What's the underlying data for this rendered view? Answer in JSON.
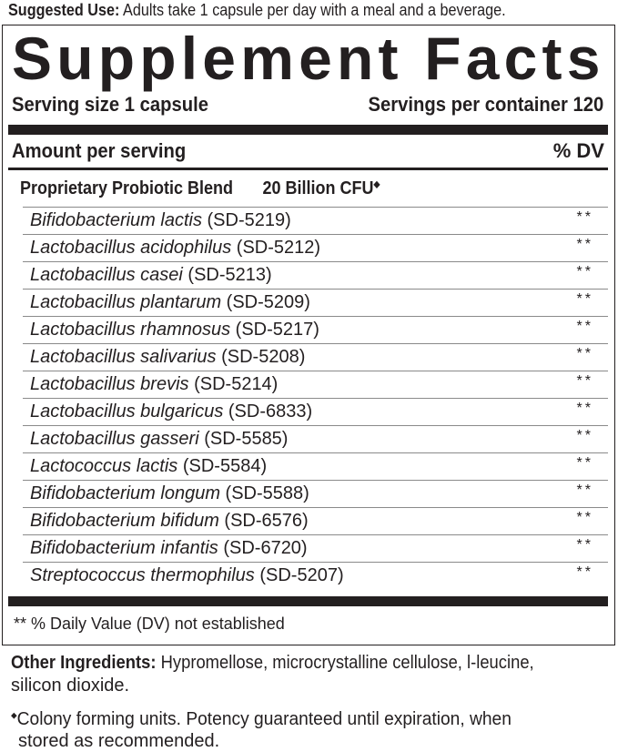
{
  "suggested_use": {
    "label": "Suggested Use:",
    "text": " Adults take 1 capsule per day with a meal and a beverage."
  },
  "panel": {
    "title": "Supplement Facts",
    "serving_size": "Serving size 1 capsule",
    "servings_per_container": "Servings per container 120",
    "amount_per_serving": "Amount per serving",
    "dv_header": "% DV",
    "blend": {
      "name": "Proprietary Probiotic Blend",
      "amount": "20 Billion CFU",
      "mark": "◆"
    },
    "ingredients": [
      {
        "species": "Bifidobacterium lactis",
        "strain": " (SD-5219)",
        "dv": "**"
      },
      {
        "species": "Lactobacillus acidophilus",
        "strain": " (SD-5212)",
        "dv": "**"
      },
      {
        "species": "Lactobacillus casei",
        "strain": " (SD-5213)",
        "dv": "**"
      },
      {
        "species": "Lactobacillus plantarum",
        "strain": " (SD-5209)",
        "dv": "**"
      },
      {
        "species": "Lactobacillus rhamnosus",
        "strain": " (SD-5217)",
        "dv": "**"
      },
      {
        "species": "Lactobacillus salivarius",
        "strain": " (SD-5208)",
        "dv": "**"
      },
      {
        "species": "Lactobacillus brevis",
        "strain": " (SD-5214)",
        "dv": "**"
      },
      {
        "species": "Lactobacillus bulgaricus",
        "strain": " (SD-6833)",
        "dv": "**"
      },
      {
        "species": "Lactobacillus gasseri",
        "strain": " (SD-5585)",
        "dv": "**"
      },
      {
        "species": "Lactococcus lactis",
        "strain": " (SD-5584)",
        "dv": "**"
      },
      {
        "species": "Bifidobacterium longum",
        "strain": " (SD-5588)",
        "dv": "**"
      },
      {
        "species": "Bifidobacterium bifidum",
        "strain": " (SD-6576)",
        "dv": "**"
      },
      {
        "species": "Bifidobacterium infantis",
        "strain": " (SD-6720)",
        "dv": "**"
      },
      {
        "species": "Streptococcus thermophilus",
        "strain": " (SD-5207)",
        "dv": "**"
      }
    ],
    "footnote": "** % Daily Value (DV) not established"
  },
  "other_ingredients": {
    "label": "Other Ingredients:",
    "line1": " Hypromellose, microcrystalline cellulose, l-leucine,",
    "line2": "silicon dioxide."
  },
  "cfu_note": {
    "mark": "◆",
    "line1": "Colony forming units. Potency guaranteed until expiration, when",
    "line2": "stored as recommended."
  }
}
